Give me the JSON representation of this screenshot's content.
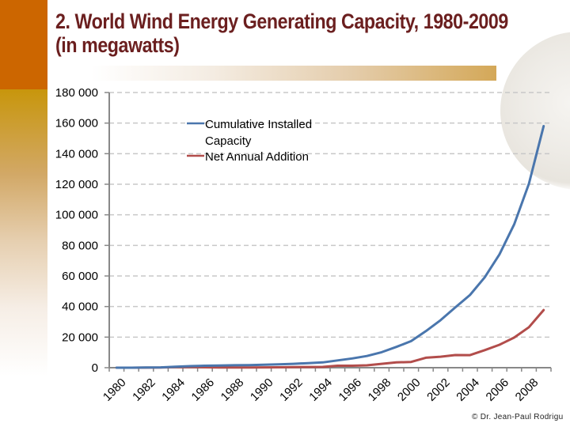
{
  "slide": {
    "title_line1": "2. World Wind Energy Generating Capacity, 1980-2009",
    "title_line2": "(in megawatts)",
    "copyright": "© Dr. Jean-Paul Rodrigu",
    "colors": {
      "accent_orange": "#cc6600",
      "title": "#6b1f1f",
      "gold": "#c8960c"
    }
  },
  "chart_data": {
    "type": "line",
    "title": "World Wind Energy Generating Capacity, 1980-2009 (in megawatts)",
    "xlabel": "",
    "ylabel": "",
    "ylim": [
      0,
      180000
    ],
    "yticks": [
      0,
      20000,
      40000,
      60000,
      80000,
      100000,
      120000,
      140000,
      160000,
      180000
    ],
    "ytick_labels": [
      "0",
      "20 000",
      "40 000",
      "60 000",
      "80 000",
      "100 000",
      "120 000",
      "140 000",
      "160 000",
      "180 000"
    ],
    "x": [
      1980,
      1981,
      1982,
      1983,
      1984,
      1985,
      1986,
      1987,
      1988,
      1989,
      1990,
      1991,
      1992,
      1993,
      1994,
      1995,
      1996,
      1997,
      1998,
      1999,
      2000,
      2001,
      2002,
      2003,
      2004,
      2005,
      2006,
      2007,
      2008,
      2009
    ],
    "xtick_labels": [
      "1980",
      "1982",
      "1984",
      "1986",
      "1988",
      "1990",
      "1992",
      "1994",
      "1996",
      "1998",
      "2000",
      "2002",
      "2004",
      "2006",
      "2008"
    ],
    "grid": "horizontal dashed",
    "legend_position": "top-center",
    "series": [
      {
        "name": "Cumulative Installed Capacity",
        "color": "#4a76ad",
        "values": [
          10,
          25,
          90,
          210,
          600,
          1020,
          1270,
          1450,
          1580,
          1730,
          1930,
          2170,
          2510,
          2990,
          3490,
          4780,
          6070,
          7640,
          10150,
          13600,
          17400,
          23900,
          31100,
          39400,
          47600,
          59100,
          74100,
          93800,
          120300,
          158000
        ]
      },
      {
        "name": "Net Annual Addition",
        "color": "#b24d4b",
        "values": [
          10,
          15,
          65,
          120,
          390,
          420,
          250,
          180,
          130,
          150,
          200,
          240,
          340,
          480,
          500,
          1290,
          1290,
          1570,
          2510,
          3450,
          3800,
          6500,
          7200,
          8300,
          8200,
          11500,
          15000,
          19700,
          26500,
          37700
        ]
      }
    ]
  }
}
